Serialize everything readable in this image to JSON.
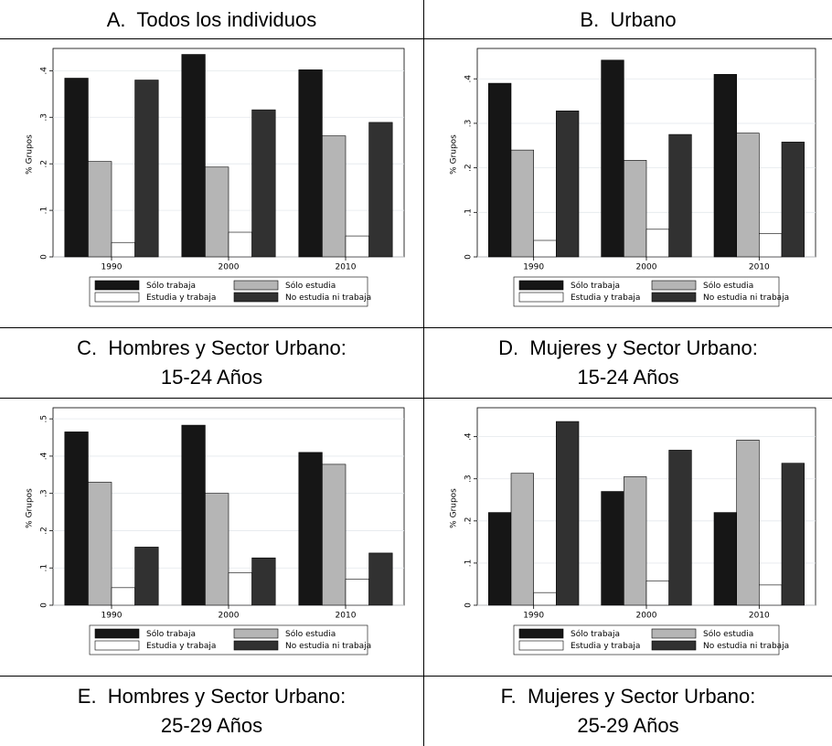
{
  "table": {
    "rows": [
      [
        [
          "A.  Todos los individuos"
        ],
        [
          "B.  Urbano"
        ]
      ],
      [
        [
          "C.  Hombres y Sector Urbano:",
          "15-24 Años"
        ],
        [
          "D.  Mujeres y Sector Urbano:",
          "15-24 Años"
        ]
      ],
      [
        [
          "E.  Hombres y Sector Urbano:",
          "25-29 Años"
        ],
        [
          "F.  Mujeres y Sector Urbano:",
          "25-29 Años"
        ]
      ]
    ]
  },
  "chart_data": [
    {
      "type": "bar",
      "ylabel": "% Grupos",
      "categories": [
        "1990",
        "2000",
        "2010"
      ],
      "ylim": [
        0,
        0.44
      ],
      "yticks": [
        0,
        {
          "value": 0.1,
          "label": ".1"
        },
        {
          "value": 0.2,
          "label": ".2"
        },
        {
          "value": 0.3,
          "label": ".3"
        },
        {
          "value": 0.4,
          "label": ".4"
        }
      ],
      "grid": true,
      "series": [
        {
          "name": "Sólo trabaja",
          "color": "#161616",
          "values": [
            0.384,
            0.435,
            0.402
          ]
        },
        {
          "name": "Sólo estudia",
          "color": "#b5b5b5",
          "values": [
            0.205,
            0.193,
            0.26
          ]
        },
        {
          "name": "Estudia y trabaja",
          "color": "#ffffff",
          "values": [
            0.031,
            0.053,
            0.045
          ]
        },
        {
          "name": "No estudia ni trabaja",
          "color": "#313131",
          "values": [
            0.38,
            0.316,
            0.289
          ]
        }
      ]
    },
    {
      "type": "bar",
      "ylabel": "% Grupos",
      "categories": [
        "1990",
        "2000",
        "2010"
      ],
      "ylim": [
        0,
        0.46
      ],
      "yticks": [
        0,
        {
          "value": 0.1,
          "label": ".1"
        },
        {
          "value": 0.2,
          "label": ".2"
        },
        {
          "value": 0.3,
          "label": ".3"
        },
        {
          "value": 0.4,
          "label": ".4"
        }
      ],
      "grid": true,
      "series": [
        {
          "name": "Sólo trabaja",
          "color": "#161616",
          "values": [
            0.39,
            0.442,
            0.41
          ]
        },
        {
          "name": "Sólo estudia",
          "color": "#b5b5b5",
          "values": [
            0.24,
            0.217,
            0.278
          ]
        },
        {
          "name": "Estudia y trabaja",
          "color": "#ffffff",
          "values": [
            0.037,
            0.062,
            0.052
          ]
        },
        {
          "name": "No estudia ni trabaja",
          "color": "#313131",
          "values": [
            0.328,
            0.275,
            0.258
          ]
        }
      ]
    },
    {
      "type": "bar",
      "ylabel": "% Grupos",
      "categories": [
        "1990",
        "2000",
        "2010"
      ],
      "ylim": [
        0,
        0.52
      ],
      "yticks": [
        0,
        {
          "value": 0.1,
          "label": ".1"
        },
        {
          "value": 0.2,
          "label": ".2"
        },
        {
          "value": 0.3,
          "label": ".3"
        },
        {
          "value": 0.4,
          "label": ".4"
        },
        {
          "value": 0.5,
          "label": ".5"
        }
      ],
      "grid": true,
      "series": [
        {
          "name": "Sólo trabaja",
          "color": "#161616",
          "values": [
            0.465,
            0.483,
            0.41
          ]
        },
        {
          "name": "Sólo estudia",
          "color": "#b5b5b5",
          "values": [
            0.33,
            0.3,
            0.378
          ]
        },
        {
          "name": "Estudia y trabaja",
          "color": "#ffffff",
          "values": [
            0.047,
            0.087,
            0.07
          ]
        },
        {
          "name": "No estudia ni trabaja",
          "color": "#313131",
          "values": [
            0.156,
            0.127,
            0.14
          ]
        }
      ]
    },
    {
      "type": "bar",
      "ylabel": "% Grupos",
      "categories": [
        "1990",
        "2000",
        "2010"
      ],
      "ylim": [
        0,
        0.46
      ],
      "yticks": [
        0,
        {
          "value": 0.1,
          "label": ".1"
        },
        {
          "value": 0.2,
          "label": ".2"
        },
        {
          "value": 0.3,
          "label": ".3"
        },
        {
          "value": 0.4,
          "label": ".4"
        }
      ],
      "grid": true,
      "series": [
        {
          "name": "Sólo trabaja",
          "color": "#161616",
          "values": [
            0.22,
            0.27,
            0.22
          ]
        },
        {
          "name": "Sólo estudia",
          "color": "#b5b5b5",
          "values": [
            0.313,
            0.305,
            0.392
          ]
        },
        {
          "name": "Estudia y trabaja",
          "color": "#ffffff",
          "values": [
            0.03,
            0.058,
            0.048
          ]
        },
        {
          "name": "No estudia ni trabaja",
          "color": "#313131",
          "values": [
            0.436,
            0.368,
            0.337
          ]
        }
      ]
    }
  ]
}
